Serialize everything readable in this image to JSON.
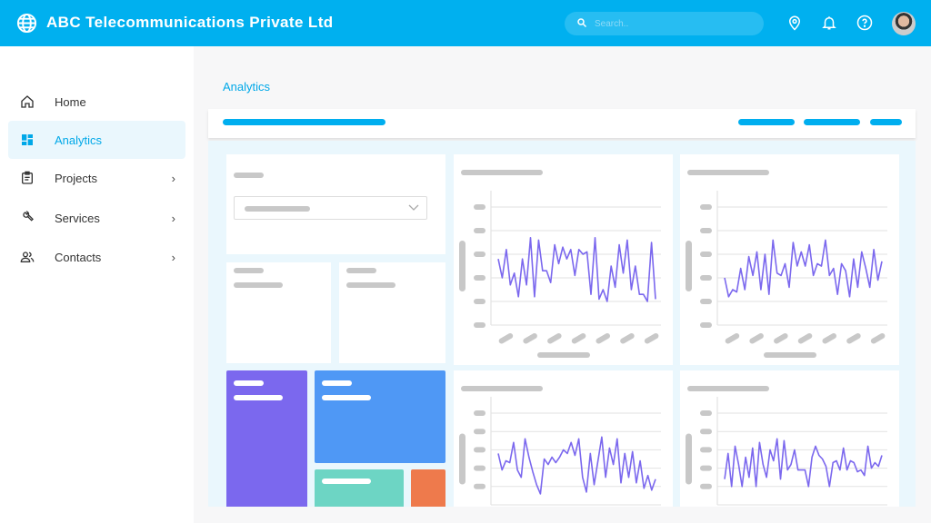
{
  "header": {
    "title": "ABC Telecommunications Private Ltd",
    "search_placeholder": "Search..",
    "icons": [
      "globe-icon",
      "search-icon",
      "location-icon",
      "bell-icon",
      "help-icon"
    ],
    "color": "#00b0ef"
  },
  "sidebar": {
    "items": [
      {
        "label": "Home",
        "icon": "home-icon",
        "active": false,
        "has_submenu": false
      },
      {
        "label": "Analytics",
        "icon": "dashboard-icon",
        "active": true,
        "has_submenu": false
      },
      {
        "label": "Projects",
        "icon": "clipboard-icon",
        "active": false,
        "has_submenu": true
      },
      {
        "label": "Services",
        "icon": "wrench-icon",
        "active": false,
        "has_submenu": true
      },
      {
        "label": "Contacts",
        "icon": "people-icon",
        "active": false,
        "has_submenu": true
      }
    ]
  },
  "breadcrumb": "Analytics",
  "tile_colors": {
    "purple": "#7b68ee",
    "blue": "#4f98f5",
    "teal": "#6dd5c4",
    "orange": "#ee7a4c",
    "line": "#7b68ee"
  },
  "chart_data": [
    {
      "type": "line",
      "ylim": [
        0,
        5
      ],
      "values": [
        2.8,
        2.0,
        3.2,
        1.7,
        2.2,
        1.2,
        2.8,
        1.7,
        3.7,
        1.2,
        3.6,
        2.3,
        2.3,
        1.8,
        3.4,
        2.6,
        3.3,
        2.8,
        3.2,
        2.1,
        3.2,
        3.0,
        3.1,
        1.3,
        3.7,
        1.1,
        1.5,
        1.0,
        2.5,
        1.6,
        3.4,
        2.2,
        3.6,
        1.5,
        2.5,
        1.3,
        1.3,
        1.0,
        3.5,
        1.1
      ]
    },
    {
      "type": "line",
      "ylim": [
        0,
        5
      ],
      "values": [
        2.0,
        1.2,
        1.5,
        1.4,
        2.4,
        1.5,
        2.9,
        2.1,
        3.1,
        1.5,
        3.0,
        1.3,
        3.6,
        2.2,
        2.1,
        2.6,
        1.6,
        3.5,
        2.5,
        3.1,
        2.5,
        3.4,
        2.1,
        2.6,
        2.5,
        3.6,
        2.1,
        2.4,
        1.3,
        2.6,
        2.3,
        1.2,
        2.8,
        1.6,
        3.1,
        2.4,
        1.6,
        3.2,
        1.9,
        2.7
      ]
    },
    {
      "type": "line",
      "ylim": [
        0,
        5
      ],
      "values": [
        2.8,
        1.9,
        2.4,
        2.3,
        3.4,
        1.9,
        1.5,
        3.6,
        2.6,
        1.8,
        1.1,
        0.6,
        2.5,
        2.2,
        2.6,
        2.3,
        2.6,
        3.0,
        2.8,
        3.4,
        2.7,
        3.6,
        1.5,
        0.7,
        2.8,
        1.1,
        2.4,
        3.7,
        1.5,
        3.1,
        2.2,
        3.6,
        1.2,
        2.8,
        1.5,
        2.9,
        1.2,
        2.4,
        0.9,
        1.6,
        0.8,
        1.4
      ]
    },
    {
      "type": "line",
      "ylim": [
        0,
        5
      ],
      "values": [
        1.4,
        2.8,
        1.0,
        3.2,
        2.2,
        1.0,
        2.6,
        1.5,
        3.1,
        1.0,
        3.4,
        2.2,
        1.5,
        3.0,
        2.4,
        3.6,
        1.4,
        3.5,
        1.9,
        2.2,
        3.0,
        1.9,
        1.9,
        1.9,
        1.0,
        2.6,
        3.2,
        2.7,
        2.5,
        2.1,
        1.0,
        2.3,
        2.4,
        1.9,
        3.1,
        1.9,
        2.4,
        2.3,
        1.8,
        1.9,
        1.6,
        3.2,
        2.0,
        2.3,
        2.1,
        2.7
      ]
    }
  ]
}
